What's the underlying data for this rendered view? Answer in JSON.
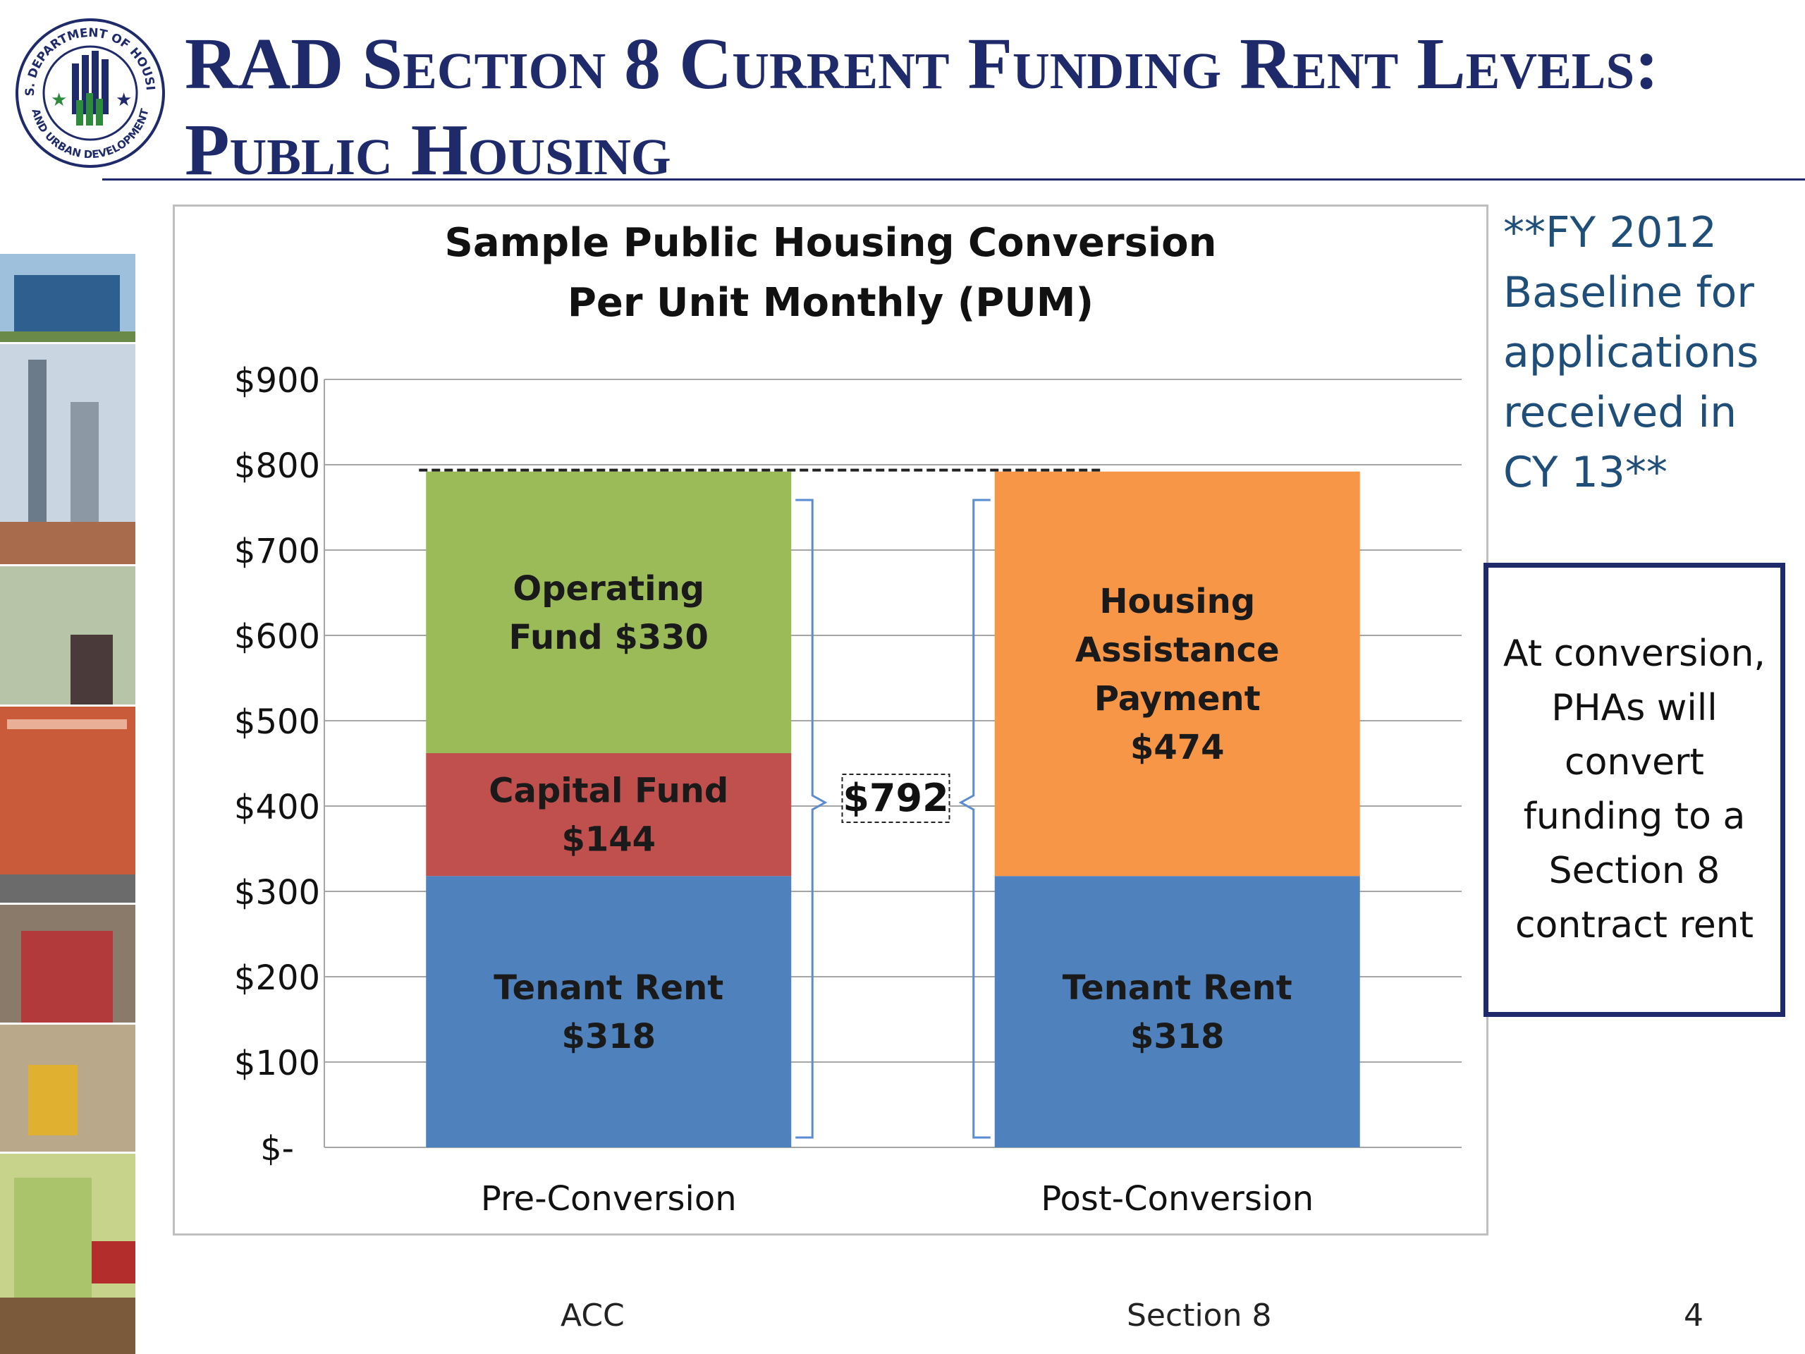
{
  "slide": {
    "title_line1": "RAD Section 8 Current Funding Rent Levels:",
    "title_line2": "Public Housing",
    "seal_text_top": "U.S. DEPARTMENT OF HOUSING",
    "seal_text_bottom": "AND URBAN DEVELOPMENT",
    "baseline_note_lines": [
      "**FY 2012",
      "Baseline for",
      "applications",
      "received in",
      "CY 13**"
    ],
    "callout_lines": [
      "At conversion,",
      "PHAs will",
      "convert",
      "funding to a",
      "Section 8",
      "contract rent"
    ],
    "footer_left": "ACC",
    "footer_right": "Section 8",
    "page_number": "4"
  },
  "colors": {
    "title": "#1f2a6b",
    "note": "#1f4e79",
    "tenant_rent": "#4f81bd",
    "capital_fund": "#c0504d",
    "operating_fund": "#9bbb59",
    "hap": "#f79646",
    "grid": "#a6a6a6",
    "bracket": "#5b8bd0"
  },
  "chart_data": {
    "type": "bar",
    "stacked": true,
    "title_line1": "Sample Public Housing Conversion",
    "title_line2": "Per Unit Monthly (PUM)",
    "categories": [
      "Pre-Conversion",
      "Post-Conversion"
    ],
    "ylim": [
      0,
      900
    ],
    "y_ticks": [
      0,
      100,
      200,
      300,
      400,
      500,
      600,
      700,
      800,
      900
    ],
    "y_tick_labels": [
      "$-",
      "$100",
      "$200",
      "$300",
      "$400",
      "$500",
      "$600",
      "$700",
      "$800",
      "$900"
    ],
    "grid": true,
    "series": [
      {
        "name": "Tenant Rent",
        "values": [
          318,
          318
        ],
        "labels": [
          [
            "Tenant Rent",
            "$318"
          ],
          [
            "Tenant  Rent",
            "$318"
          ]
        ]
      },
      {
        "name": "Capital Fund",
        "values": [
          144,
          0
        ],
        "labels": [
          [
            "Capital Fund",
            "$144"
          ],
          null
        ]
      },
      {
        "name": "Operating Fund",
        "values": [
          330,
          0
        ],
        "labels": [
          [
            "Operating",
            "Fund  $330"
          ],
          null
        ]
      },
      {
        "name": "Housing Assistance Payment",
        "values": [
          0,
          474
        ],
        "labels": [
          null,
          [
            "Housing",
            "Assistance",
            "Payment",
            "$474"
          ]
        ]
      }
    ],
    "total_label": "$792",
    "total_value": 792
  }
}
